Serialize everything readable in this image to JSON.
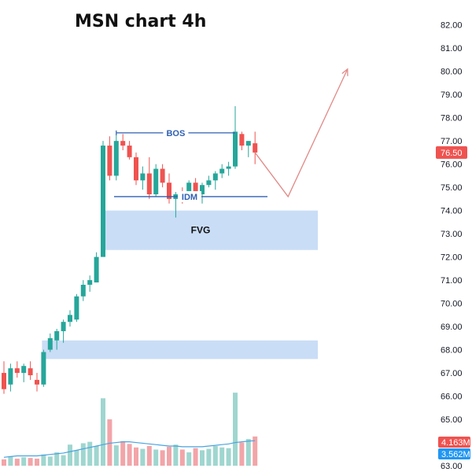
{
  "chart_data": {
    "type": "candlestick",
    "title": "MSN chart 4h",
    "y_axis": {
      "side": "right",
      "ylim": [
        63,
        82.5
      ],
      "ticks": [
        "82.00",
        "81.00",
        "80.00",
        "79.00",
        "78.00",
        "77.00",
        "76.00",
        "75.00",
        "74.00",
        "73.00",
        "72.00",
        "71.00",
        "70.00",
        "69.00",
        "68.00",
        "67.00",
        "66.00",
        "65.00",
        "64.00",
        "63.00"
      ]
    },
    "candles": [
      {
        "o": 67.0,
        "h": 67.5,
        "l": 66.1,
        "c": 66.3
      },
      {
        "o": 66.5,
        "h": 67.4,
        "l": 66.2,
        "c": 67.2
      },
      {
        "o": 67.2,
        "h": 67.5,
        "l": 66.8,
        "c": 67.0
      },
      {
        "o": 67.0,
        "h": 67.4,
        "l": 66.6,
        "c": 67.3
      },
      {
        "o": 67.2,
        "h": 67.5,
        "l": 66.7,
        "c": 66.9
      },
      {
        "o": 66.7,
        "h": 67.0,
        "l": 66.2,
        "c": 66.5
      },
      {
        "o": 66.5,
        "h": 68.0,
        "l": 66.4,
        "c": 67.9
      },
      {
        "o": 68.0,
        "h": 68.7,
        "l": 67.9,
        "c": 68.5
      },
      {
        "o": 68.4,
        "h": 68.9,
        "l": 68.0,
        "c": 68.8
      },
      {
        "o": 68.8,
        "h": 69.3,
        "l": 68.3,
        "c": 69.2
      },
      {
        "o": 69.2,
        "h": 69.7,
        "l": 69.0,
        "c": 69.5
      },
      {
        "o": 69.3,
        "h": 70.4,
        "l": 69.2,
        "c": 70.3
      },
      {
        "o": 70.3,
        "h": 71.0,
        "l": 70.1,
        "c": 70.8
      },
      {
        "o": 70.8,
        "h": 71.2,
        "l": 70.5,
        "c": 71.0
      },
      {
        "o": 70.9,
        "h": 72.2,
        "l": 70.9,
        "c": 72.0
      },
      {
        "o": 72.0,
        "h": 77.0,
        "l": 72.0,
        "c": 76.8
      },
      {
        "o": 76.8,
        "h": 77.2,
        "l": 75.3,
        "c": 75.5
      },
      {
        "o": 75.5,
        "h": 77.3,
        "l": 75.3,
        "c": 77.0
      },
      {
        "o": 77.0,
        "h": 77.3,
        "l": 76.6,
        "c": 76.8
      },
      {
        "o": 76.8,
        "h": 77.0,
        "l": 76.2,
        "c": 76.3
      },
      {
        "o": 76.3,
        "h": 76.5,
        "l": 75.1,
        "c": 75.3
      },
      {
        "o": 75.3,
        "h": 75.9,
        "l": 74.9,
        "c": 75.6
      },
      {
        "o": 75.6,
        "h": 76.3,
        "l": 74.5,
        "c": 74.7
      },
      {
        "o": 74.7,
        "h": 76.0,
        "l": 74.6,
        "c": 75.8
      },
      {
        "o": 75.8,
        "h": 76.0,
        "l": 75.0,
        "c": 75.2
      },
      {
        "o": 75.2,
        "h": 75.6,
        "l": 74.3,
        "c": 74.5
      },
      {
        "o": 74.5,
        "h": 74.8,
        "l": 73.7,
        "c": 74.7
      },
      {
        "o": 74.7,
        "h": 75.0,
        "l": 74.3,
        "c": 74.6
      },
      {
        "o": 74.6,
        "h": 75.3,
        "l": 74.5,
        "c": 75.2
      },
      {
        "o": 75.2,
        "h": 75.4,
        "l": 74.5,
        "c": 74.7
      },
      {
        "o": 74.7,
        "h": 75.2,
        "l": 74.3,
        "c": 75.1
      },
      {
        "o": 75.1,
        "h": 75.5,
        "l": 75.0,
        "c": 75.3
      },
      {
        "o": 75.3,
        "h": 75.7,
        "l": 74.9,
        "c": 75.6
      },
      {
        "o": 75.6,
        "h": 76.0,
        "l": 75.4,
        "c": 75.8
      },
      {
        "o": 75.8,
        "h": 76.1,
        "l": 75.5,
        "c": 75.9
      },
      {
        "o": 75.9,
        "h": 78.5,
        "l": 75.8,
        "c": 77.4
      },
      {
        "o": 77.3,
        "h": 77.4,
        "l": 76.6,
        "c": 76.8
      },
      {
        "o": 76.8,
        "h": 77.0,
        "l": 76.3,
        "c": 77.0
      },
      {
        "o": 76.9,
        "h": 77.4,
        "l": 76.0,
        "c": 76.5
      }
    ],
    "volume": {
      "values": [
        0.9,
        1.3,
        1.0,
        1.2,
        1.1,
        1.0,
        1.6,
        1.3,
        1.9,
        1.5,
        3.0,
        2.2,
        3.2,
        3.4,
        2.8,
        9.6,
        6.6,
        2.9,
        3.5,
        3.1,
        2.6,
        2.4,
        2.8,
        2.3,
        2.2,
        2.7,
        3.0,
        2.3,
        1.9,
        2.5,
        2.2,
        2.4,
        2.8,
        2.6,
        2.5,
        10.4,
        3.3,
        3.8,
        4.163
      ],
      "ma": [
        1.2,
        1.3,
        1.4,
        1.4,
        1.4,
        1.4,
        1.5,
        1.6,
        1.7,
        1.8,
        2.0,
        2.2,
        2.4,
        2.6,
        2.8,
        3.0,
        3.2,
        3.3,
        3.4,
        3.4,
        3.3,
        3.2,
        3.1,
        3.0,
        2.9,
        2.8,
        2.8,
        2.7,
        2.7,
        2.7,
        2.7,
        2.8,
        2.9,
        3.0,
        3.1,
        3.3,
        3.4,
        3.5,
        3.562
      ],
      "label_last": "4.163M",
      "label_ma": "3.562M",
      "max": 14
    },
    "last_price": 76.5,
    "annotations": {
      "bos_label": "BOS",
      "bos_price": 77.35,
      "idm_label": "IDM",
      "idm_price": 74.6,
      "fvg_label": "FVG",
      "fvg_zone": [
        72.3,
        74.0
      ],
      "lower_zone": [
        67.6,
        68.4
      ],
      "projection": [
        {
          "bar": 38,
          "price": 76.5
        },
        {
          "bar": 43,
          "price": 74.6
        },
        {
          "bar": 52,
          "price": 80.1
        }
      ]
    },
    "x_bars_visible": 64,
    "grid": false
  },
  "price_tag": "76.50",
  "colors": {
    "up": "#26a69a",
    "down": "#ef5350",
    "up_volume": "#9fd6cf",
    "down_volume": "#f2a5a9",
    "ma_volume": "#4aa3df",
    "zone": "#c9ddf6",
    "annotation": "#2f5fb3",
    "projection": "#e08a87",
    "price_badge": "#ef5350",
    "ma_badge": "#2196f3"
  }
}
